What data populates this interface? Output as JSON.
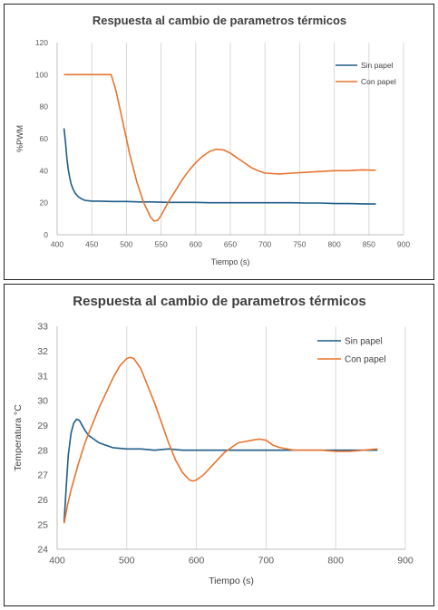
{
  "chart_data": [
    {
      "type": "line",
      "title": "Respuesta al cambio de parametros térmicos",
      "xlabel": "Tiempo (s)",
      "ylabel": "%PWM",
      "xlim": [
        400,
        900
      ],
      "ylim": [
        0,
        120
      ],
      "xticks": [
        400,
        450,
        500,
        550,
        600,
        650,
        700,
        750,
        800,
        850,
        900
      ],
      "yticks": [
        0,
        20,
        40,
        60,
        80,
        100,
        120
      ],
      "grid": "vertical",
      "legend": "top-right",
      "series": [
        {
          "name": "Sin papel",
          "color": "#1f5c86",
          "x": [
            410,
            412,
            414,
            416,
            418,
            420,
            423,
            426,
            430,
            435,
            440,
            450,
            460,
            480,
            500,
            520,
            540,
            560,
            580,
            600,
            620,
            640,
            660,
            680,
            700,
            720,
            740,
            760,
            780,
            800,
            820,
            840,
            860
          ],
          "y": [
            66.5,
            58,
            48,
            41,
            36,
            32,
            28.5,
            26,
            24,
            22.5,
            21.5,
            21,
            21,
            20.8,
            20.8,
            20.5,
            20.5,
            20.2,
            20.2,
            20.2,
            20,
            20,
            20,
            20,
            20,
            20,
            20,
            19.8,
            19.8,
            19.5,
            19.5,
            19.3,
            19.2
          ]
        },
        {
          "name": "Con papel",
          "color": "#e8742f",
          "x": [
            410,
            440,
            470,
            478,
            485,
            495,
            505,
            515,
            525,
            535,
            540,
            545,
            550,
            560,
            570,
            580,
            590,
            600,
            610,
            620,
            630,
            640,
            650,
            660,
            670,
            680,
            690,
            700,
            720,
            740,
            760,
            780,
            800,
            820,
            840,
            860
          ],
          "y": [
            100,
            100,
            100,
            100,
            90,
            70,
            50,
            33,
            20,
            11,
            8.5,
            9,
            12,
            20,
            27,
            34,
            40,
            45,
            49,
            52,
            53.5,
            53,
            51,
            48,
            45,
            42,
            40,
            38.5,
            38,
            38.5,
            39,
            39.5,
            40,
            40,
            40.5,
            40.3
          ]
        }
      ]
    },
    {
      "type": "line",
      "title": "Respuesta al cambio de parametros térmicos",
      "xlabel": "Tiempo (s)",
      "ylabel": "Temperatura °C",
      "xlim": [
        400,
        900
      ],
      "ylim": [
        24,
        33
      ],
      "xticks": [
        400,
        500,
        600,
        700,
        800,
        900
      ],
      "yticks": [
        24,
        25,
        26,
        27,
        28,
        29,
        30,
        31,
        32,
        33
      ],
      "grid": "vertical",
      "legend": "top-right",
      "series": [
        {
          "name": "Sin papel",
          "color": "#1f5c86",
          "x": [
            410,
            413,
            416,
            420,
            424,
            428,
            432,
            436,
            440,
            445,
            450,
            460,
            470,
            480,
            500,
            520,
            540,
            560,
            580,
            600,
            620,
            640,
            660,
            680,
            700,
            720,
            740,
            760,
            780,
            800,
            820,
            840,
            860
          ],
          "y": [
            25.1,
            26.5,
            27.8,
            28.7,
            29.1,
            29.25,
            29.2,
            29,
            28.8,
            28.6,
            28.5,
            28.3,
            28.2,
            28.1,
            28.05,
            28.05,
            28,
            28.05,
            28,
            28,
            28,
            28,
            28,
            28,
            28,
            28,
            28,
            28,
            28,
            28,
            28,
            28,
            28
          ]
        },
        {
          "name": "Con papel",
          "color": "#e8742f",
          "x": [
            410,
            415,
            420,
            430,
            440,
            450,
            460,
            470,
            480,
            490,
            500,
            505,
            510,
            520,
            530,
            540,
            550,
            560,
            570,
            580,
            590,
            595,
            600,
            610,
            620,
            630,
            640,
            650,
            660,
            670,
            680,
            690,
            700,
            710,
            720,
            740,
            760,
            780,
            800,
            820,
            840,
            860
          ],
          "y": [
            25.05,
            25.8,
            26.4,
            27.4,
            28.3,
            29,
            29.7,
            30.3,
            30.9,
            31.4,
            31.7,
            31.75,
            31.7,
            31.3,
            30.6,
            29.9,
            29.1,
            28.3,
            27.6,
            27.1,
            26.8,
            26.75,
            26.8,
            27,
            27.3,
            27.6,
            27.9,
            28.1,
            28.3,
            28.35,
            28.4,
            28.45,
            28.4,
            28.2,
            28.1,
            28,
            28,
            28,
            27.95,
            27.95,
            28,
            28.05
          ]
        }
      ]
    }
  ]
}
